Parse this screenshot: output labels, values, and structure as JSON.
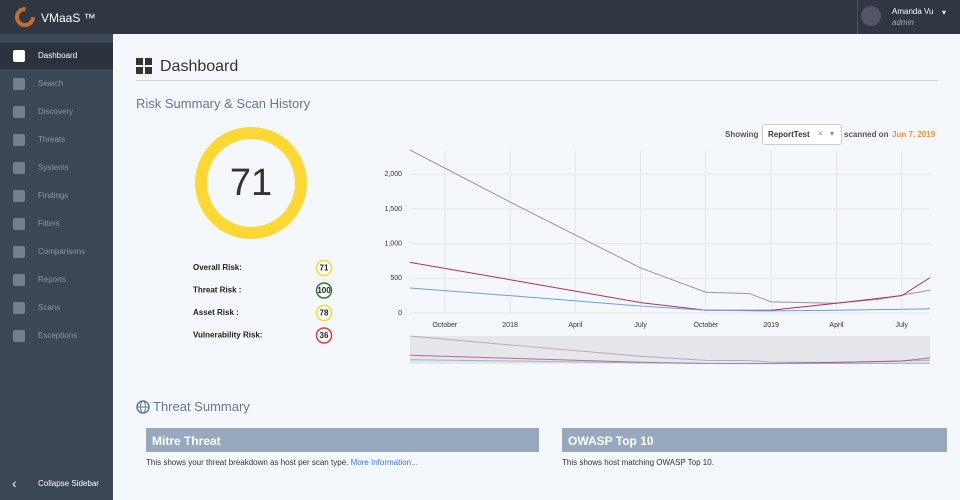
{
  "topbar": {
    "brand": "VMaaS ™",
    "user": "Amanda Vu",
    "role": "admin"
  },
  "sidebar": {
    "items": [
      "Dashboard",
      "Search",
      "Discovery",
      "Threats",
      "Systems",
      "Findings",
      "Filters",
      "Comparisons",
      "Reports",
      "Scans",
      "Exceptions"
    ],
    "active": 0,
    "collapse": "Collapse Sidebar"
  },
  "page": {
    "title": "Dashboard",
    "section": "Risk Summary & Scan History"
  },
  "risk": {
    "score": 71,
    "score_color": "#fdd835",
    "items": [
      {
        "label": "Overall Risk:",
        "value": 71,
        "color": "#fdd835"
      },
      {
        "label": "Threat Risk :",
        "value": 100,
        "color": "#2e7d32"
      },
      {
        "label": "Asset Risk :",
        "value": 78,
        "color": "#fdd835"
      },
      {
        "label": "Vulnerability Risk:",
        "value": 36,
        "color": "#e53935"
      }
    ]
  },
  "scan": {
    "showing": "Showing",
    "report": "ReportTest",
    "scanned": "scanned on",
    "date": "Jun 7, 2019"
  },
  "chart": {
    "type": "line",
    "xlim": [
      -1.6,
      22.3
    ],
    "xticks": [
      {
        "value": 0,
        "label": "October"
      },
      {
        "value": 3,
        "label": "2018"
      },
      {
        "value": 6,
        "label": "April"
      },
      {
        "value": 9,
        "label": "July"
      },
      {
        "value": 12,
        "label": "October"
      },
      {
        "value": 15,
        "label": "2019"
      },
      {
        "value": 18,
        "label": "April"
      },
      {
        "value": 21,
        "label": "July"
      }
    ],
    "ylim": [
      0,
      2350
    ],
    "yticks": [
      0,
      500,
      {
        "value": 1000,
        "label": "1,000"
      },
      {
        "value": 1500,
        "label": "1,500"
      },
      {
        "value": 2000,
        "label": "2,000"
      }
    ],
    "grid": true,
    "series": [
      {
        "color": "#a88aa8",
        "x": [
          -1.6,
          3,
          9,
          12,
          14,
          15,
          18,
          20,
          22.3
        ],
        "values": [
          2350,
          1600,
          650,
          300,
          280,
          160,
          140,
          200,
          330
        ]
      },
      {
        "color": "#b0305e",
        "x": [
          -1.6,
          3,
          9,
          12,
          15,
          18,
          21,
          22.3
        ],
        "values": [
          730,
          480,
          150,
          40,
          40,
          140,
          250,
          510
        ]
      },
      {
        "color": "#6a9fd8",
        "x": [
          -1.6,
          3,
          9,
          12,
          15,
          18,
          22.3
        ],
        "values": [
          360,
          250,
          100,
          40,
          30,
          40,
          60
        ]
      }
    ]
  },
  "threat": {
    "title": "Threat Summary",
    "cards": [
      {
        "title": "Mitre Threat",
        "text": "This shows your threat breakdown as host per scan type.",
        "link": "More Information..."
      },
      {
        "title": "OWASP Top 10",
        "text": "This shows host matching OWASP Top 10."
      }
    ]
  }
}
